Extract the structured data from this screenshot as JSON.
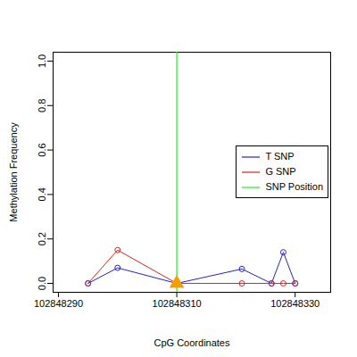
{
  "chart_data": {
    "type": "line",
    "x_label": "CpG Coordinates",
    "y_label": "Methylation Frequency",
    "x": [
      102848295,
      102848300,
      102848310,
      102848321,
      102848326,
      102848328,
      102848330
    ],
    "series": [
      {
        "name": "T SNP",
        "color": "#2020dd",
        "marker": "circle",
        "values": [
          0,
          0.07,
          0,
          0.065,
          0,
          0.14,
          0
        ]
      },
      {
        "name": "G SNP",
        "color": "#dd2020",
        "marker": "circle",
        "values": [
          0,
          0.15,
          0,
          0,
          0,
          0,
          0
        ]
      }
    ],
    "snp_position": {
      "name": "SNP Position",
      "color": "#22ee22",
      "value": 102848310
    },
    "xlim": [
      102848289.1,
      102848336
    ],
    "xticks": [
      102848290,
      102848310,
      102848330
    ],
    "ylim": [
      -0.04,
      1.04
    ],
    "yticks": [
      {
        "value": 0,
        "label": "0.0"
      },
      {
        "value": 0.2,
        "label": "0.2"
      },
      {
        "value": 0.4,
        "label": "0.4"
      },
      {
        "value": 0.6,
        "label": "0.6"
      },
      {
        "value": 0.8,
        "label": "0.8"
      },
      {
        "value": 1,
        "label": "1.0"
      }
    ],
    "legend": "right"
  }
}
